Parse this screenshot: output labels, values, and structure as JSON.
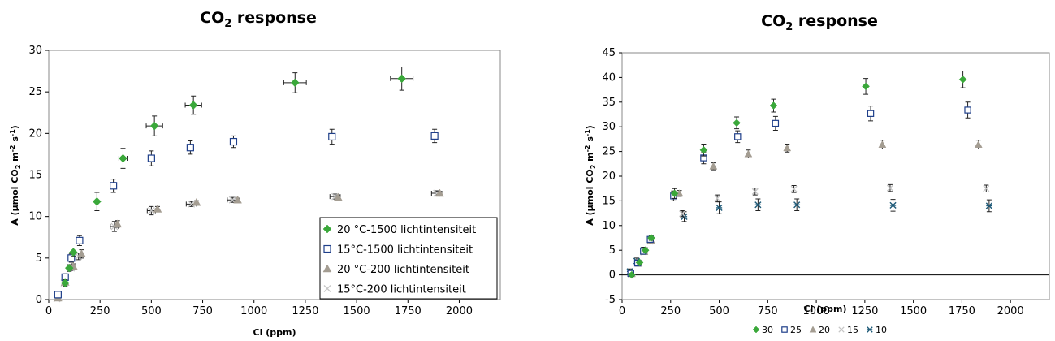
{
  "chart_data": [
    {
      "type": "scatter",
      "title": "CO2 response",
      "xlabel": "Ci (ppm)",
      "ylabel": "A (µmol CO2 m-2 s-1)",
      "xlim": [
        0,
        2200
      ],
      "ylim": [
        0,
        30
      ],
      "x_ticks": [
        "0",
        "250",
        "500",
        "750",
        "1000",
        "1250",
        "1500",
        "1750",
        "2000"
      ],
      "y_ticks": [
        "0",
        "5",
        "10",
        "15",
        "20",
        "25",
        "30"
      ],
      "grid": false,
      "legend_position": "bottom-right",
      "series": [
        {
          "name": "20 °C-1500 lichtintensiteit",
          "marker": "diamond",
          "color": "#3aa83a",
          "points": [
            {
              "x": 80,
              "y": 2.0,
              "xerr": 0,
              "yerr": 0.4
            },
            {
              "x": 100,
              "y": 3.8,
              "xerr": 0,
              "yerr": 0.4
            },
            {
              "x": 120,
              "y": 5.7,
              "xerr": 0,
              "yerr": 0.5
            },
            {
              "x": 235,
              "y": 11.8,
              "xerr": 0,
              "yerr": 1.1
            },
            {
              "x": 362,
              "y": 17.0,
              "xerr": 20,
              "yerr": 1.2
            },
            {
              "x": 515,
              "y": 20.9,
              "xerr": 40,
              "yerr": 1.2
            },
            {
              "x": 705,
              "y": 23.4,
              "xerr": 40,
              "yerr": 1.1
            },
            {
              "x": 1200,
              "y": 26.1,
              "xerr": 55,
              "yerr": 1.2
            },
            {
              "x": 1720,
              "y": 26.6,
              "xerr": 55,
              "yerr": 1.4
            }
          ]
        },
        {
          "name": "15°C-1500 lichtintensiteit",
          "marker": "square-open",
          "color": "#1f3f8a",
          "points": [
            {
              "x": 45,
              "y": 0.6,
              "xerr": 0,
              "yerr": 0.3
            },
            {
              "x": 80,
              "y": 2.7,
              "xerr": 0,
              "yerr": 0.4
            },
            {
              "x": 110,
              "y": 5.0,
              "xerr": 0,
              "yerr": 0.5
            },
            {
              "x": 150,
              "y": 7.1,
              "xerr": 0,
              "yerr": 0.6
            },
            {
              "x": 315,
              "y": 13.7,
              "xerr": 0,
              "yerr": 0.8
            },
            {
              "x": 500,
              "y": 17.0,
              "xerr": 0,
              "yerr": 0.9
            },
            {
              "x": 690,
              "y": 18.3,
              "xerr": 0,
              "yerr": 0.8
            },
            {
              "x": 900,
              "y": 19.0,
              "xerr": 0,
              "yerr": 0.7
            },
            {
              "x": 1380,
              "y": 19.6,
              "xerr": 0,
              "yerr": 0.9
            },
            {
              "x": 1880,
              "y": 19.7,
              "xerr": 0,
              "yerr": 0.8
            }
          ]
        },
        {
          "name": "20 °C-200 lichtintensiteit",
          "marker": "triangle",
          "color": "#a49d92",
          "points": [
            {
              "x": 45,
              "y": 0.2,
              "xerr": 0,
              "yerr": 0.1
            },
            {
              "x": 80,
              "y": 2.1,
              "xerr": 0,
              "yerr": 0.3
            },
            {
              "x": 120,
              "y": 4.0,
              "xerr": 0,
              "yerr": 0.3
            },
            {
              "x": 160,
              "y": 5.5,
              "xerr": 0,
              "yerr": 0.5
            },
            {
              "x": 335,
              "y": 9.1,
              "xerr": 0,
              "yerr": 0.4
            },
            {
              "x": 530,
              "y": 10.9,
              "xerr": 0,
              "yerr": 0.3
            },
            {
              "x": 720,
              "y": 11.7,
              "xerr": 0,
              "yerr": 0.2
            },
            {
              "x": 920,
              "y": 12.0,
              "xerr": 0,
              "yerr": 0.2
            },
            {
              "x": 1410,
              "y": 12.3,
              "xerr": 0,
              "yerr": 0.2
            },
            {
              "x": 1905,
              "y": 12.8,
              "xerr": 0,
              "yerr": 0.2
            }
          ]
        },
        {
          "name": "15°C-200 lichtintensiteit",
          "marker": "x",
          "color": "#c7c7c7",
          "points": [
            {
              "x": 40,
              "y": 0.1,
              "xerr": 0,
              "yerr": 0.1
            },
            {
              "x": 75,
              "y": 2.0,
              "xerr": 0,
              "yerr": 0.2
            },
            {
              "x": 110,
              "y": 3.8,
              "xerr": 0,
              "yerr": 0.3
            },
            {
              "x": 145,
              "y": 5.2,
              "xerr": 0,
              "yerr": 0.4
            },
            {
              "x": 320,
              "y": 8.8,
              "xerr": 20,
              "yerr": 0.6
            },
            {
              "x": 500,
              "y": 10.7,
              "xerr": 20,
              "yerr": 0.5
            },
            {
              "x": 695,
              "y": 11.5,
              "xerr": 25,
              "yerr": 0.3
            },
            {
              "x": 895,
              "y": 12.0,
              "xerr": 25,
              "yerr": 0.3
            },
            {
              "x": 1395,
              "y": 12.4,
              "xerr": 25,
              "yerr": 0.3
            },
            {
              "x": 1890,
              "y": 12.8,
              "xerr": 25,
              "yerr": 0.3
            }
          ]
        }
      ]
    },
    {
      "type": "scatter",
      "title": "CO2 response",
      "xlabel": "Ci (ppm)",
      "ylabel": "A (µmol CO2 m-2 s-1)",
      "xlim": [
        0,
        2200
      ],
      "ylim": [
        -5,
        45
      ],
      "x_ticks": [
        "0",
        "250",
        "500",
        "750",
        "1000",
        "1250",
        "1500",
        "1750",
        "2000"
      ],
      "y_ticks": [
        "-5",
        "0",
        "5",
        "10",
        "15",
        "20",
        "25",
        "30",
        "35",
        "40",
        "45"
      ],
      "grid": false,
      "legend_position": "bottom",
      "series": [
        {
          "name": "30",
          "marker": "diamond",
          "color": "#3aa83a",
          "points": [
            {
              "x": 50,
              "y": 0.0,
              "yerr": 0.3
            },
            {
              "x": 90,
              "y": 2.5,
              "yerr": 0.4
            },
            {
              "x": 120,
              "y": 5.0,
              "yerr": 0.5
            },
            {
              "x": 150,
              "y": 7.5,
              "yerr": 0.5
            },
            {
              "x": 270,
              "y": 16.5,
              "yerr": 1.0
            },
            {
              "x": 420,
              "y": 25.3,
              "yerr": 1.2
            },
            {
              "x": 590,
              "y": 30.8,
              "yerr": 1.2
            },
            {
              "x": 780,
              "y": 34.3,
              "yerr": 1.3
            },
            {
              "x": 1255,
              "y": 38.2,
              "yerr": 1.6
            },
            {
              "x": 1755,
              "y": 39.6,
              "yerr": 1.7
            }
          ]
        },
        {
          "name": "25",
          "marker": "square-open",
          "color": "#1f3f8a",
          "points": [
            {
              "x": 45,
              "y": 0.3,
              "yerr": 0.3
            },
            {
              "x": 80,
              "y": 2.4,
              "yerr": 0.4
            },
            {
              "x": 110,
              "y": 4.8,
              "yerr": 0.5
            },
            {
              "x": 145,
              "y": 7.2,
              "yerr": 0.5
            },
            {
              "x": 265,
              "y": 16.0,
              "yerr": 1.0
            },
            {
              "x": 420,
              "y": 23.7,
              "yerr": 1.2
            },
            {
              "x": 595,
              "y": 28.0,
              "yerr": 1.2
            },
            {
              "x": 790,
              "y": 30.7,
              "yerr": 1.4
            },
            {
              "x": 1280,
              "y": 32.7,
              "yerr": 1.5
            },
            {
              "x": 1780,
              "y": 33.4,
              "yerr": 1.6
            }
          ]
        },
        {
          "name": "20",
          "marker": "triangle",
          "color": "#a49d92",
          "points": [
            {
              "x": 50,
              "y": 0.2,
              "yerr": 0.2
            },
            {
              "x": 85,
              "y": 2.3,
              "yerr": 0.3
            },
            {
              "x": 115,
              "y": 4.7,
              "yerr": 0.4
            },
            {
              "x": 150,
              "y": 7.0,
              "yerr": 0.5
            },
            {
              "x": 295,
              "y": 16.5,
              "yerr": 0.6
            },
            {
              "x": 470,
              "y": 22.0,
              "yerr": 0.7
            },
            {
              "x": 650,
              "y": 24.5,
              "yerr": 0.8
            },
            {
              "x": 850,
              "y": 25.7,
              "yerr": 0.8
            },
            {
              "x": 1340,
              "y": 26.4,
              "yerr": 0.9
            },
            {
              "x": 1835,
              "y": 26.4,
              "yerr": 0.9
            }
          ]
        },
        {
          "name": "15",
          "marker": "x",
          "color": "#c7c7c7",
          "points": [
            {
              "x": 45,
              "y": 0.1,
              "yerr": 0.2
            },
            {
              "x": 80,
              "y": 2.3,
              "yerr": 0.3
            },
            {
              "x": 110,
              "y": 4.6,
              "yerr": 0.4
            },
            {
              "x": 145,
              "y": 6.8,
              "yerr": 0.4
            },
            {
              "x": 310,
              "y": 12.4,
              "yerr": 0.6
            },
            {
              "x": 490,
              "y": 15.5,
              "yerr": 0.7
            },
            {
              "x": 685,
              "y": 16.9,
              "yerr": 0.7
            },
            {
              "x": 885,
              "y": 17.4,
              "yerr": 0.7
            },
            {
              "x": 1380,
              "y": 17.6,
              "yerr": 0.7
            },
            {
              "x": 1875,
              "y": 17.5,
              "yerr": 0.7
            }
          ]
        },
        {
          "name": "10",
          "marker": "asterisk",
          "color": "#1e5a78",
          "points": [
            {
              "x": 40,
              "y": 0.7,
              "yerr": 0.5
            },
            {
              "x": 75,
              "y": 2.8,
              "yerr": 0.6
            },
            {
              "x": 110,
              "y": 5.0,
              "yerr": 0.6
            },
            {
              "x": 145,
              "y": 7.0,
              "yerr": 0.7
            },
            {
              "x": 320,
              "y": 11.8,
              "yerr": 1.0
            },
            {
              "x": 500,
              "y": 13.6,
              "yerr": 1.2
            },
            {
              "x": 700,
              "y": 14.2,
              "yerr": 1.2
            },
            {
              "x": 900,
              "y": 14.2,
              "yerr": 1.2
            },
            {
              "x": 1395,
              "y": 14.1,
              "yerr": 1.2
            },
            {
              "x": 1890,
              "y": 14.0,
              "yerr": 1.2
            }
          ]
        }
      ]
    }
  ]
}
